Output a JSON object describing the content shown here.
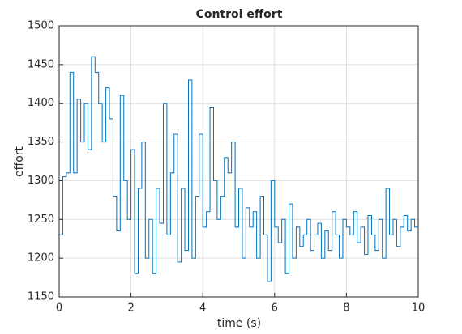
{
  "chart_data": {
    "type": "line",
    "drawstyle": "steps-post",
    "title": "Control effort",
    "xlabel": "time (s)",
    "ylabel": "effort",
    "x": [
      0,
      0.1,
      0.2,
      0.3,
      0.4,
      0.5,
      0.6,
      0.7,
      0.8,
      0.9,
      1,
      1.1,
      1.2,
      1.3,
      1.4,
      1.5,
      1.6,
      1.7,
      1.8,
      1.9,
      2,
      2.1,
      2.2,
      2.3,
      2.4,
      2.5,
      2.6,
      2.7,
      2.8,
      2.9,
      3,
      3.1,
      3.2,
      3.3,
      3.4,
      3.5,
      3.6,
      3.7,
      3.8,
      3.9,
      4,
      4.1,
      4.2,
      4.3,
      4.4,
      4.5,
      4.6,
      4.7,
      4.8,
      4.9,
      5,
      5.1,
      5.2,
      5.3,
      5.4,
      5.5,
      5.6,
      5.7,
      5.8,
      5.9,
      6,
      6.1,
      6.2,
      6.3,
      6.4,
      6.5,
      6.6,
      6.7,
      6.8,
      6.9,
      7,
      7.1,
      7.2,
      7.3,
      7.4,
      7.5,
      7.6,
      7.7,
      7.8,
      7.9,
      8,
      8.1,
      8.2,
      8.3,
      8.4,
      8.5,
      8.6,
      8.7,
      8.8,
      8.9,
      9,
      9.1,
      9.2,
      9.3,
      9.4,
      9.5,
      9.6,
      9.7,
      9.8,
      9.9,
      10
    ],
    "series": [
      {
        "name": "effort",
        "color": "#0072bd",
        "values": [
          1230,
          1305,
          1310,
          1440,
          1310,
          1405,
          1350,
          1400,
          1340,
          1460,
          1440,
          1400,
          1350,
          1420,
          1380,
          1280,
          1235,
          1410,
          1300,
          1250,
          1340,
          1180,
          1290,
          1350,
          1200,
          1250,
          1180,
          1290,
          1245,
          1400,
          1230,
          1310,
          1360,
          1195,
          1290,
          1210,
          1430,
          1200,
          1280,
          1360,
          1240,
          1260,
          1395,
          1300,
          1250,
          1280,
          1330,
          1310,
          1350,
          1240,
          1290,
          1200,
          1265,
          1240,
          1260,
          1200,
          1280,
          1230,
          1170,
          1300,
          1240,
          1220,
          1250,
          1180,
          1270,
          1200,
          1240,
          1215,
          1230,
          1250,
          1210,
          1230,
          1245,
          1200,
          1235,
          1210,
          1260,
          1230,
          1200,
          1250,
          1240,
          1230,
          1260,
          1220,
          1240,
          1205,
          1255,
          1230,
          1210,
          1250,
          1200,
          1290,
          1230,
          1250,
          1215,
          1240,
          1255,
          1235,
          1250,
          1240,
          1240
        ]
      }
    ],
    "xlim": [
      0,
      10
    ],
    "xticks": [
      0,
      2,
      4,
      6,
      8,
      10
    ],
    "ylim": [
      1150,
      1500
    ],
    "yticks": [
      1150,
      1200,
      1250,
      1300,
      1350,
      1400,
      1450,
      1500
    ],
    "grid": true
  }
}
